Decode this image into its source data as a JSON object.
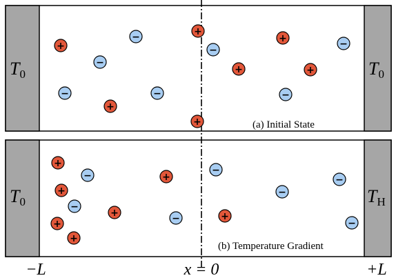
{
  "panels": [
    {
      "caption": "(a) Initial State",
      "left_label": {
        "main": "T",
        "sub": "0"
      },
      "right_label": {
        "main": "T",
        "sub": "0"
      }
    },
    {
      "caption": "(b) Temperature Gradient",
      "left_label": {
        "main": "T",
        "sub": "0"
      },
      "right_label": {
        "main": "T",
        "sub": "H"
      }
    }
  ],
  "axis_labels": {
    "left": "−L",
    "center": "x = 0",
    "right": "+L"
  },
  "ion_signs": {
    "positive": "+",
    "negative": "−"
  }
}
